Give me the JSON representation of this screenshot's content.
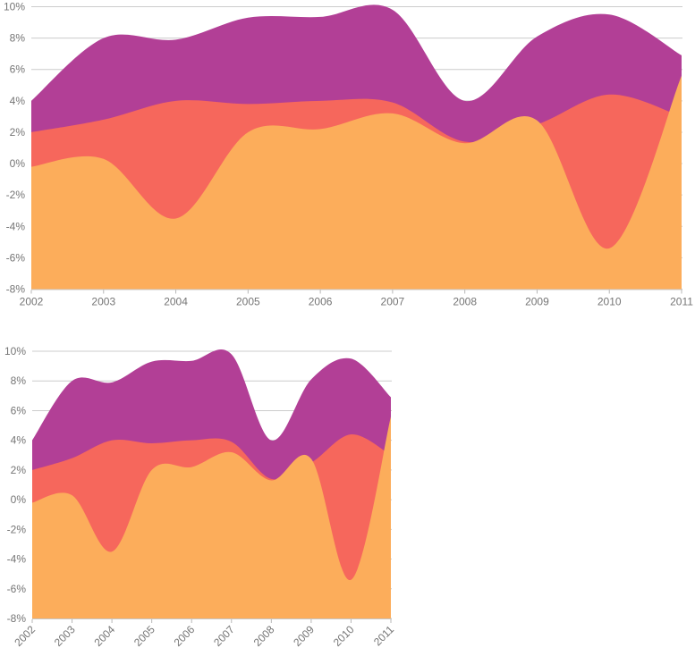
{
  "chart_data": {
    "type": "area",
    "title": "",
    "xlabel": "",
    "ylabel": "",
    "x": [
      2002,
      2003,
      2004,
      2005,
      2006,
      2007,
      2008,
      2009,
      2010,
      2011
    ],
    "x_tick_labels": [
      "2002",
      "2003",
      "2004",
      "2005",
      "2006",
      "2007",
      "2008",
      "2009",
      "2010",
      "2011"
    ],
    "y_tick_labels": [
      "10%",
      "8%",
      "6%",
      "4%",
      "2%",
      "0%",
      "-2%",
      "-4%",
      "-6%",
      "-8%"
    ],
    "y_tick_values": [
      10,
      8,
      6,
      4,
      2,
      0,
      -2,
      -4,
      -6,
      -8
    ],
    "ylim": [
      -8,
      10
    ],
    "grid": true,
    "legend": "none",
    "smoothing": "function",
    "series": [
      {
        "name": "purple",
        "color": "#B23F96",
        "values": [
          4.0,
          8.0,
          7.9,
          9.3,
          9.35,
          9.8,
          4.0,
          8.1,
          9.5,
          6.9
        ]
      },
      {
        "name": "red",
        "color": "#F6675C",
        "values": [
          2.0,
          2.8,
          4.0,
          3.8,
          4.0,
          3.9,
          1.4,
          2.5,
          4.4,
          3.0
        ]
      },
      {
        "name": "orange",
        "color": "#FCAD5B",
        "values": [
          -0.2,
          0.3,
          -3.5,
          2.0,
          2.2,
          3.2,
          1.3,
          2.75,
          -5.4,
          5.6
        ]
      }
    ],
    "charts": [
      {
        "id": "chart-top",
        "x_label_rotation": 0
      },
      {
        "id": "chart-bottom",
        "x_label_rotation": -45
      }
    ]
  },
  "axis_style": {
    "text_color": "#757575",
    "grid_color": "#cccccc",
    "tick_color": "#b7b7b7",
    "baseline_color": "#c7c7c7",
    "background": "#ffffff"
  }
}
